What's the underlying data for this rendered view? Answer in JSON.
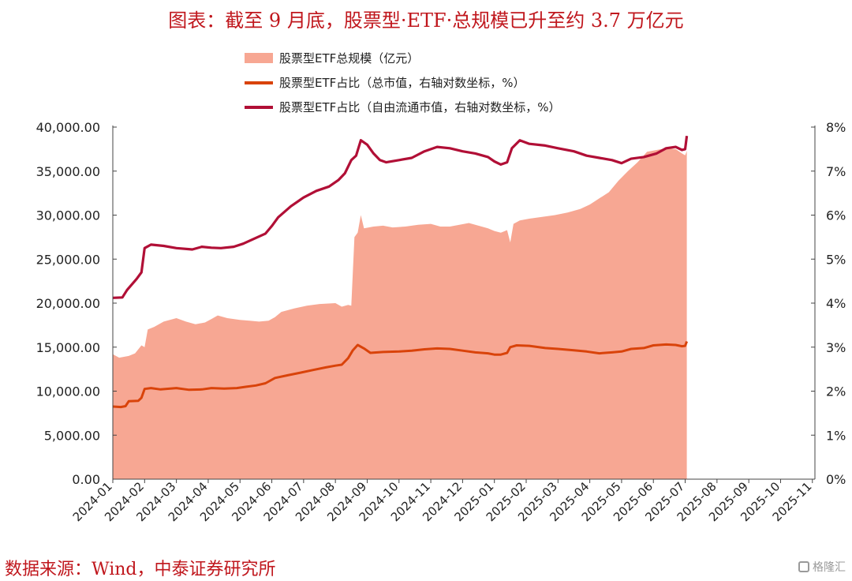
{
  "title": "图表：截至 9 月底，股票型·ETF·总规模已升至约 3.7 万亿元",
  "source": "数据来源：Wind，中泰证券研究所",
  "watermark": "格隆汇",
  "chart_data": {
    "type": "area",
    "legend_position": "top-center",
    "grid": false,
    "x_labels": [
      "2024-01",
      "2024-02",
      "2024-03",
      "2024-04",
      "2024-05",
      "2024-06",
      "2024-07",
      "2024-08",
      "2024-09",
      "2024-10",
      "2024-11",
      "2024-12",
      "2025-01",
      "2025-02",
      "2025-03",
      "2025-04",
      "2025-05",
      "2025-06",
      "2025-07",
      "2025-08",
      "2025-09",
      "2025-10",
      "2025-11"
    ],
    "y_left": {
      "range": [
        0,
        40000
      ],
      "ticks": [
        "0.00",
        "5,000.00",
        "10,000.00",
        "15,000.00",
        "20,000.00",
        "25,000.00",
        "30,000.00",
        "35,000.00",
        "40,000.00"
      ]
    },
    "y_right": {
      "range": [
        0,
        8
      ],
      "ticks": [
        "0%",
        "1%",
        "2%",
        "3%",
        "4%",
        "5%",
        "6%",
        "7%",
        "8%"
      ]
    },
    "series": [
      {
        "name": "股票型ETF总规模（亿元）",
        "type": "area",
        "axis": "left",
        "color": "#f7a793",
        "points": [
          [
            0,
            14200
          ],
          [
            0.2,
            13800
          ],
          [
            0.5,
            14000
          ],
          [
            0.7,
            14300
          ],
          [
            0.9,
            15200
          ],
          [
            1.0,
            15000
          ],
          [
            1.1,
            17000
          ],
          [
            1.3,
            17300
          ],
          [
            1.6,
            17900
          ],
          [
            2.0,
            18300
          ],
          [
            2.3,
            17900
          ],
          [
            2.6,
            17600
          ],
          [
            2.9,
            17800
          ],
          [
            3.1,
            18200
          ],
          [
            3.3,
            18600
          ],
          [
            3.6,
            18300
          ],
          [
            4.0,
            18100
          ],
          [
            4.3,
            18000
          ],
          [
            4.6,
            17900
          ],
          [
            4.9,
            18000
          ],
          [
            5.1,
            18400
          ],
          [
            5.3,
            19000
          ],
          [
            5.7,
            19400
          ],
          [
            6.1,
            19700
          ],
          [
            6.5,
            19900
          ],
          [
            7.0,
            20000
          ],
          [
            7.2,
            19600
          ],
          [
            7.4,
            19800
          ],
          [
            7.5,
            19700
          ],
          [
            7.6,
            27500
          ],
          [
            7.7,
            28000
          ],
          [
            7.8,
            30000
          ],
          [
            7.9,
            28500
          ],
          [
            8.2,
            28700
          ],
          [
            8.5,
            28800
          ],
          [
            8.8,
            28600
          ],
          [
            9.2,
            28700
          ],
          [
            9.6,
            28900
          ],
          [
            10.0,
            29000
          ],
          [
            10.3,
            28700
          ],
          [
            10.6,
            28700
          ],
          [
            10.9,
            28900
          ],
          [
            11.2,
            29100
          ],
          [
            11.5,
            28800
          ],
          [
            11.8,
            28500
          ],
          [
            12.0,
            28200
          ],
          [
            12.2,
            28000
          ],
          [
            12.4,
            28300
          ],
          [
            12.5,
            26900
          ],
          [
            12.6,
            29000
          ],
          [
            12.8,
            29400
          ],
          [
            13.1,
            29600
          ],
          [
            13.5,
            29800
          ],
          [
            13.9,
            30000
          ],
          [
            14.3,
            30300
          ],
          [
            14.7,
            30700
          ],
          [
            15.0,
            31200
          ],
          [
            15.3,
            31900
          ],
          [
            15.6,
            32600
          ],
          [
            15.9,
            33900
          ],
          [
            16.2,
            35000
          ],
          [
            16.5,
            36000
          ],
          [
            16.8,
            37200
          ],
          [
            17.1,
            37400
          ],
          [
            17.4,
            37600
          ],
          [
            17.7,
            37500
          ],
          [
            17.9,
            37000
          ],
          [
            18.0,
            36800
          ],
          [
            18.05,
            37300
          ]
        ]
      },
      {
        "name": "股票型ETF占比（总市值，右轴对数坐标，%）",
        "type": "line",
        "axis": "right",
        "color": "#d9430a",
        "points": [
          [
            0,
            1.65
          ],
          [
            0.25,
            1.64
          ],
          [
            0.4,
            1.66
          ],
          [
            0.5,
            1.77
          ],
          [
            0.8,
            1.78
          ],
          [
            0.9,
            1.85
          ],
          [
            1.0,
            2.05
          ],
          [
            1.2,
            2.07
          ],
          [
            1.5,
            2.04
          ],
          [
            2.0,
            2.07
          ],
          [
            2.4,
            2.03
          ],
          [
            2.8,
            2.04
          ],
          [
            3.1,
            2.07
          ],
          [
            3.5,
            2.06
          ],
          [
            3.9,
            2.07
          ],
          [
            4.2,
            2.1
          ],
          [
            4.5,
            2.13
          ],
          [
            4.8,
            2.18
          ],
          [
            5.1,
            2.3
          ],
          [
            5.5,
            2.36
          ],
          [
            5.9,
            2.42
          ],
          [
            6.3,
            2.48
          ],
          [
            6.7,
            2.54
          ],
          [
            7.0,
            2.58
          ],
          [
            7.2,
            2.6
          ],
          [
            7.4,
            2.75
          ],
          [
            7.55,
            2.93
          ],
          [
            7.7,
            3.05
          ],
          [
            7.9,
            2.97
          ],
          [
            8.1,
            2.87
          ],
          [
            8.5,
            2.89
          ],
          [
            9.0,
            2.9
          ],
          [
            9.4,
            2.92
          ],
          [
            9.8,
            2.95
          ],
          [
            10.2,
            2.97
          ],
          [
            10.6,
            2.96
          ],
          [
            11.0,
            2.92
          ],
          [
            11.4,
            2.88
          ],
          [
            11.8,
            2.86
          ],
          [
            12.0,
            2.83
          ],
          [
            12.2,
            2.83
          ],
          [
            12.4,
            2.87
          ],
          [
            12.5,
            3.0
          ],
          [
            12.7,
            3.04
          ],
          [
            13.1,
            3.03
          ],
          [
            13.6,
            2.98
          ],
          [
            14.0,
            2.96
          ],
          [
            14.5,
            2.93
          ],
          [
            14.9,
            2.9
          ],
          [
            15.3,
            2.86
          ],
          [
            15.7,
            2.88
          ],
          [
            16.0,
            2.9
          ],
          [
            16.3,
            2.96
          ],
          [
            16.7,
            2.98
          ],
          [
            17.0,
            3.04
          ],
          [
            17.4,
            3.06
          ],
          [
            17.7,
            3.05
          ],
          [
            17.9,
            3.02
          ],
          [
            18.0,
            3.03
          ],
          [
            18.05,
            3.13
          ]
        ]
      },
      {
        "name": "股票型ETF占比（自由流通市值，右轴对数坐标，%）",
        "type": "line",
        "axis": "right",
        "color": "#b10f36",
        "points": [
          [
            0,
            4.12
          ],
          [
            0.3,
            4.13
          ],
          [
            0.45,
            4.3
          ],
          [
            0.75,
            4.55
          ],
          [
            0.9,
            4.7
          ],
          [
            1.0,
            5.25
          ],
          [
            1.2,
            5.33
          ],
          [
            1.6,
            5.3
          ],
          [
            2.0,
            5.25
          ],
          [
            2.5,
            5.22
          ],
          [
            2.8,
            5.28
          ],
          [
            3.1,
            5.26
          ],
          [
            3.4,
            5.25
          ],
          [
            3.8,
            5.28
          ],
          [
            4.1,
            5.35
          ],
          [
            4.4,
            5.45
          ],
          [
            4.8,
            5.58
          ],
          [
            5.0,
            5.75
          ],
          [
            5.2,
            5.95
          ],
          [
            5.6,
            6.2
          ],
          [
            6.0,
            6.4
          ],
          [
            6.4,
            6.55
          ],
          [
            6.8,
            6.65
          ],
          [
            7.1,
            6.8
          ],
          [
            7.3,
            6.95
          ],
          [
            7.5,
            7.25
          ],
          [
            7.65,
            7.35
          ],
          [
            7.8,
            7.7
          ],
          [
            8.0,
            7.6
          ],
          [
            8.2,
            7.4
          ],
          [
            8.4,
            7.25
          ],
          [
            8.6,
            7.2
          ],
          [
            9.0,
            7.25
          ],
          [
            9.4,
            7.3
          ],
          [
            9.8,
            7.45
          ],
          [
            10.2,
            7.55
          ],
          [
            10.6,
            7.52
          ],
          [
            11.0,
            7.45
          ],
          [
            11.4,
            7.4
          ],
          [
            11.8,
            7.32
          ],
          [
            12.0,
            7.22
          ],
          [
            12.2,
            7.15
          ],
          [
            12.4,
            7.2
          ],
          [
            12.55,
            7.52
          ],
          [
            12.8,
            7.7
          ],
          [
            13.1,
            7.62
          ],
          [
            13.6,
            7.58
          ],
          [
            14.0,
            7.52
          ],
          [
            14.5,
            7.45
          ],
          [
            14.9,
            7.35
          ],
          [
            15.3,
            7.3
          ],
          [
            15.7,
            7.25
          ],
          [
            16.0,
            7.18
          ],
          [
            16.3,
            7.28
          ],
          [
            16.7,
            7.32
          ],
          [
            17.1,
            7.4
          ],
          [
            17.4,
            7.52
          ],
          [
            17.7,
            7.55
          ],
          [
            17.9,
            7.48
          ],
          [
            18.0,
            7.5
          ],
          [
            18.05,
            7.8
          ]
        ]
      }
    ]
  }
}
